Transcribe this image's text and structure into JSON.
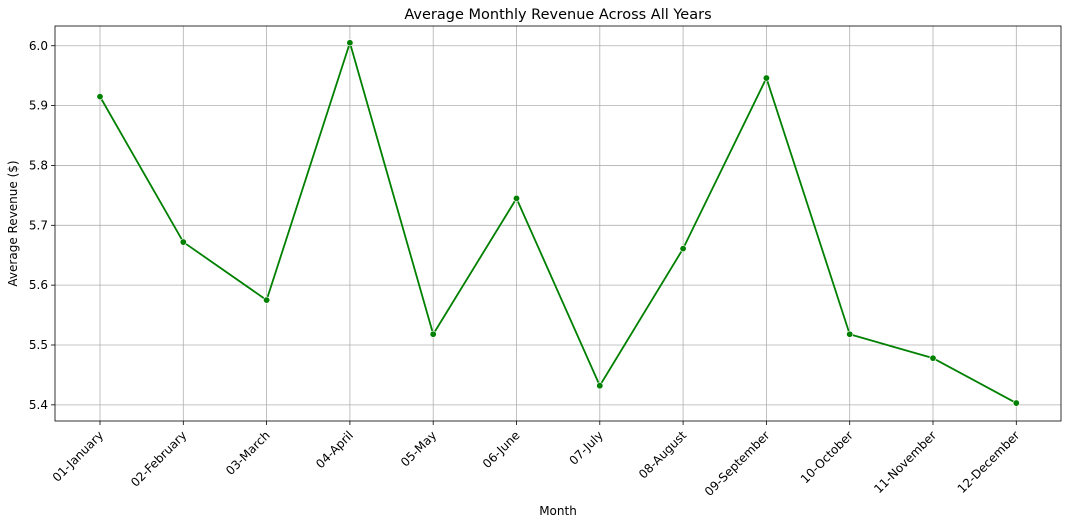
{
  "chart_data": {
    "type": "line",
    "title": "Average Monthly Revenue Across All Years",
    "xlabel": "Month",
    "ylabel": "Average Revenue ($)",
    "categories": [
      "01-January",
      "02-February",
      "03-March",
      "04-April",
      "05-May",
      "06-June",
      "07-July",
      "08-August",
      "09-September",
      "10-October",
      "11-November",
      "12-December"
    ],
    "series": [
      {
        "values": [
          5.915,
          5.672,
          5.575,
          6.005,
          5.518,
          5.745,
          5.432,
          5.661,
          5.946,
          5.518,
          5.478,
          5.403
        ]
      }
    ],
    "ylim": [
      5.373,
      6.033
    ],
    "yticks": [
      "5.4",
      "5.5",
      "5.6",
      "5.7",
      "5.8",
      "5.9",
      "6.0"
    ],
    "grid": true,
    "legend": "none",
    "colors": {
      "line": "#008000",
      "marker": "#008000",
      "grid": "#b0b0b0"
    }
  }
}
